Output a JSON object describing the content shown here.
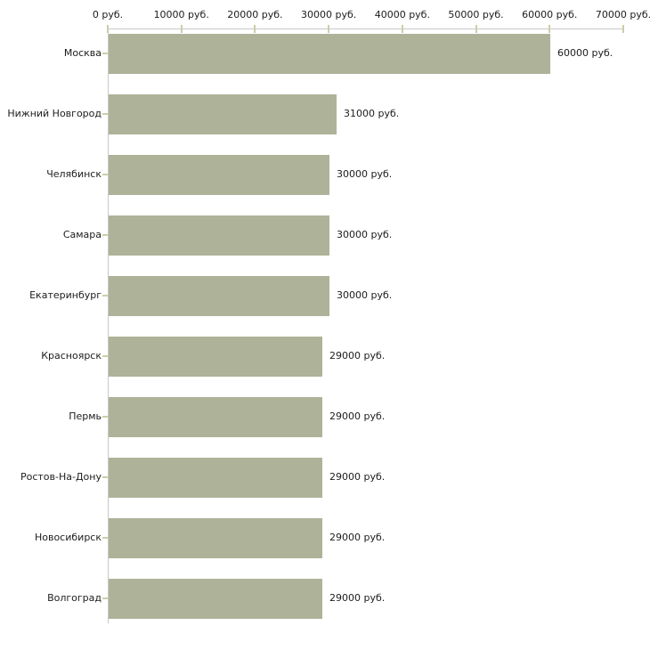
{
  "chart_data": {
    "type": "bar",
    "orientation": "horizontal",
    "title": "",
    "xlabel": "",
    "ylabel": "",
    "unit": "руб.",
    "categories": [
      "Москва",
      "Нижний Новгород",
      "Челябинск",
      "Самара",
      "Екатеринбург",
      "Красноярск",
      "Пермь",
      "Ростов-На-Дону",
      "Новосибирск",
      "Волгоград"
    ],
    "values": [
      60000,
      31000,
      30000,
      30000,
      30000,
      29000,
      29000,
      29000,
      29000,
      29000
    ],
    "value_labels": [
      "60000 руб.",
      "31000 руб.",
      "30000 руб.",
      "30000 руб.",
      "30000 руб.",
      "29000 руб.",
      "29000 руб.",
      "29000 руб.",
      "29000 руб.",
      "29000 руб."
    ],
    "x_tick_values": [
      0,
      10000,
      20000,
      30000,
      40000,
      50000,
      60000,
      70000
    ],
    "x_tick_labels": [
      "0 руб.",
      "10000 руб.",
      "20000 руб.",
      "30000 руб.",
      "40000 руб.",
      "50000 руб.",
      "60000 руб.",
      "70000 руб."
    ],
    "xlim": [
      0,
      70000
    ],
    "grid": false,
    "legend": false,
    "axis_position": "top",
    "colors": {
      "bar": "#aeb299",
      "axis_line": "#c8c8c8",
      "tick_mark": "#cdcda6",
      "text": "#1c1c1c",
      "background": "#ffffff"
    }
  }
}
